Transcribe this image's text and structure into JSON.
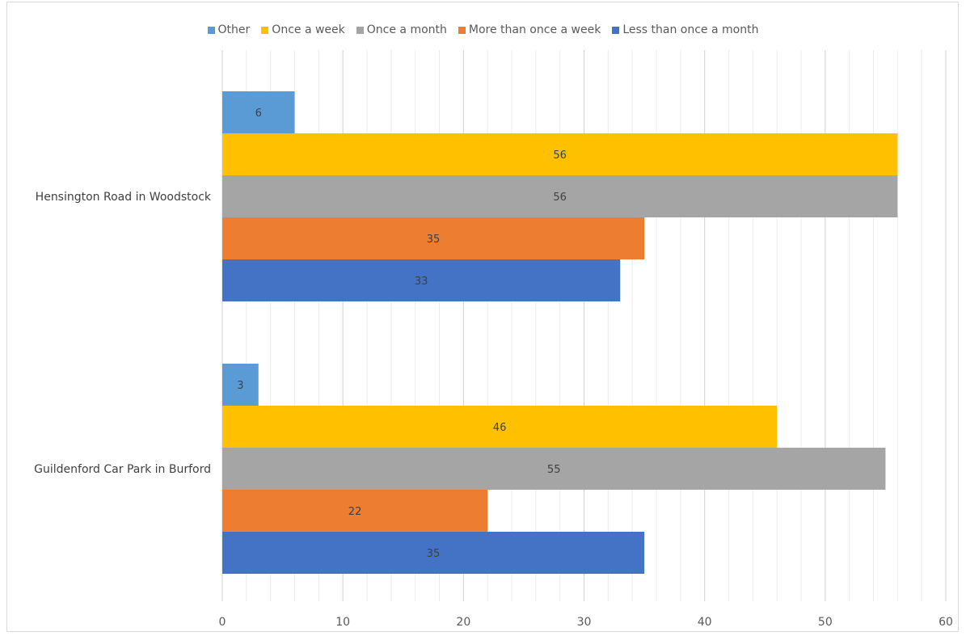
{
  "chart_data": {
    "type": "bar",
    "orientation": "horizontal",
    "categories": [
      "Hensington Road in Woodstock",
      "Guildenford Car Park in Burford"
    ],
    "series": [
      {
        "name": "Other",
        "color": "#5B9BD5",
        "values": [
          6,
          3
        ]
      },
      {
        "name": "Once a week",
        "color": "#FFC000",
        "values": [
          56,
          46
        ]
      },
      {
        "name": "Once a month",
        "color": "#A5A5A5",
        "values": [
          56,
          55
        ]
      },
      {
        "name": "More than once a week",
        "color": "#ED7D31",
        "values": [
          35,
          22
        ]
      },
      {
        "name": "Less than once a month",
        "color": "#4472C4",
        "values": [
          33,
          35
        ]
      }
    ],
    "xlim": [
      0,
      60
    ],
    "xticks": [
      0,
      10,
      20,
      30,
      40,
      50,
      60
    ],
    "grid": true,
    "legend_position": "top",
    "title": "",
    "xlabel": "",
    "ylabel": ""
  }
}
